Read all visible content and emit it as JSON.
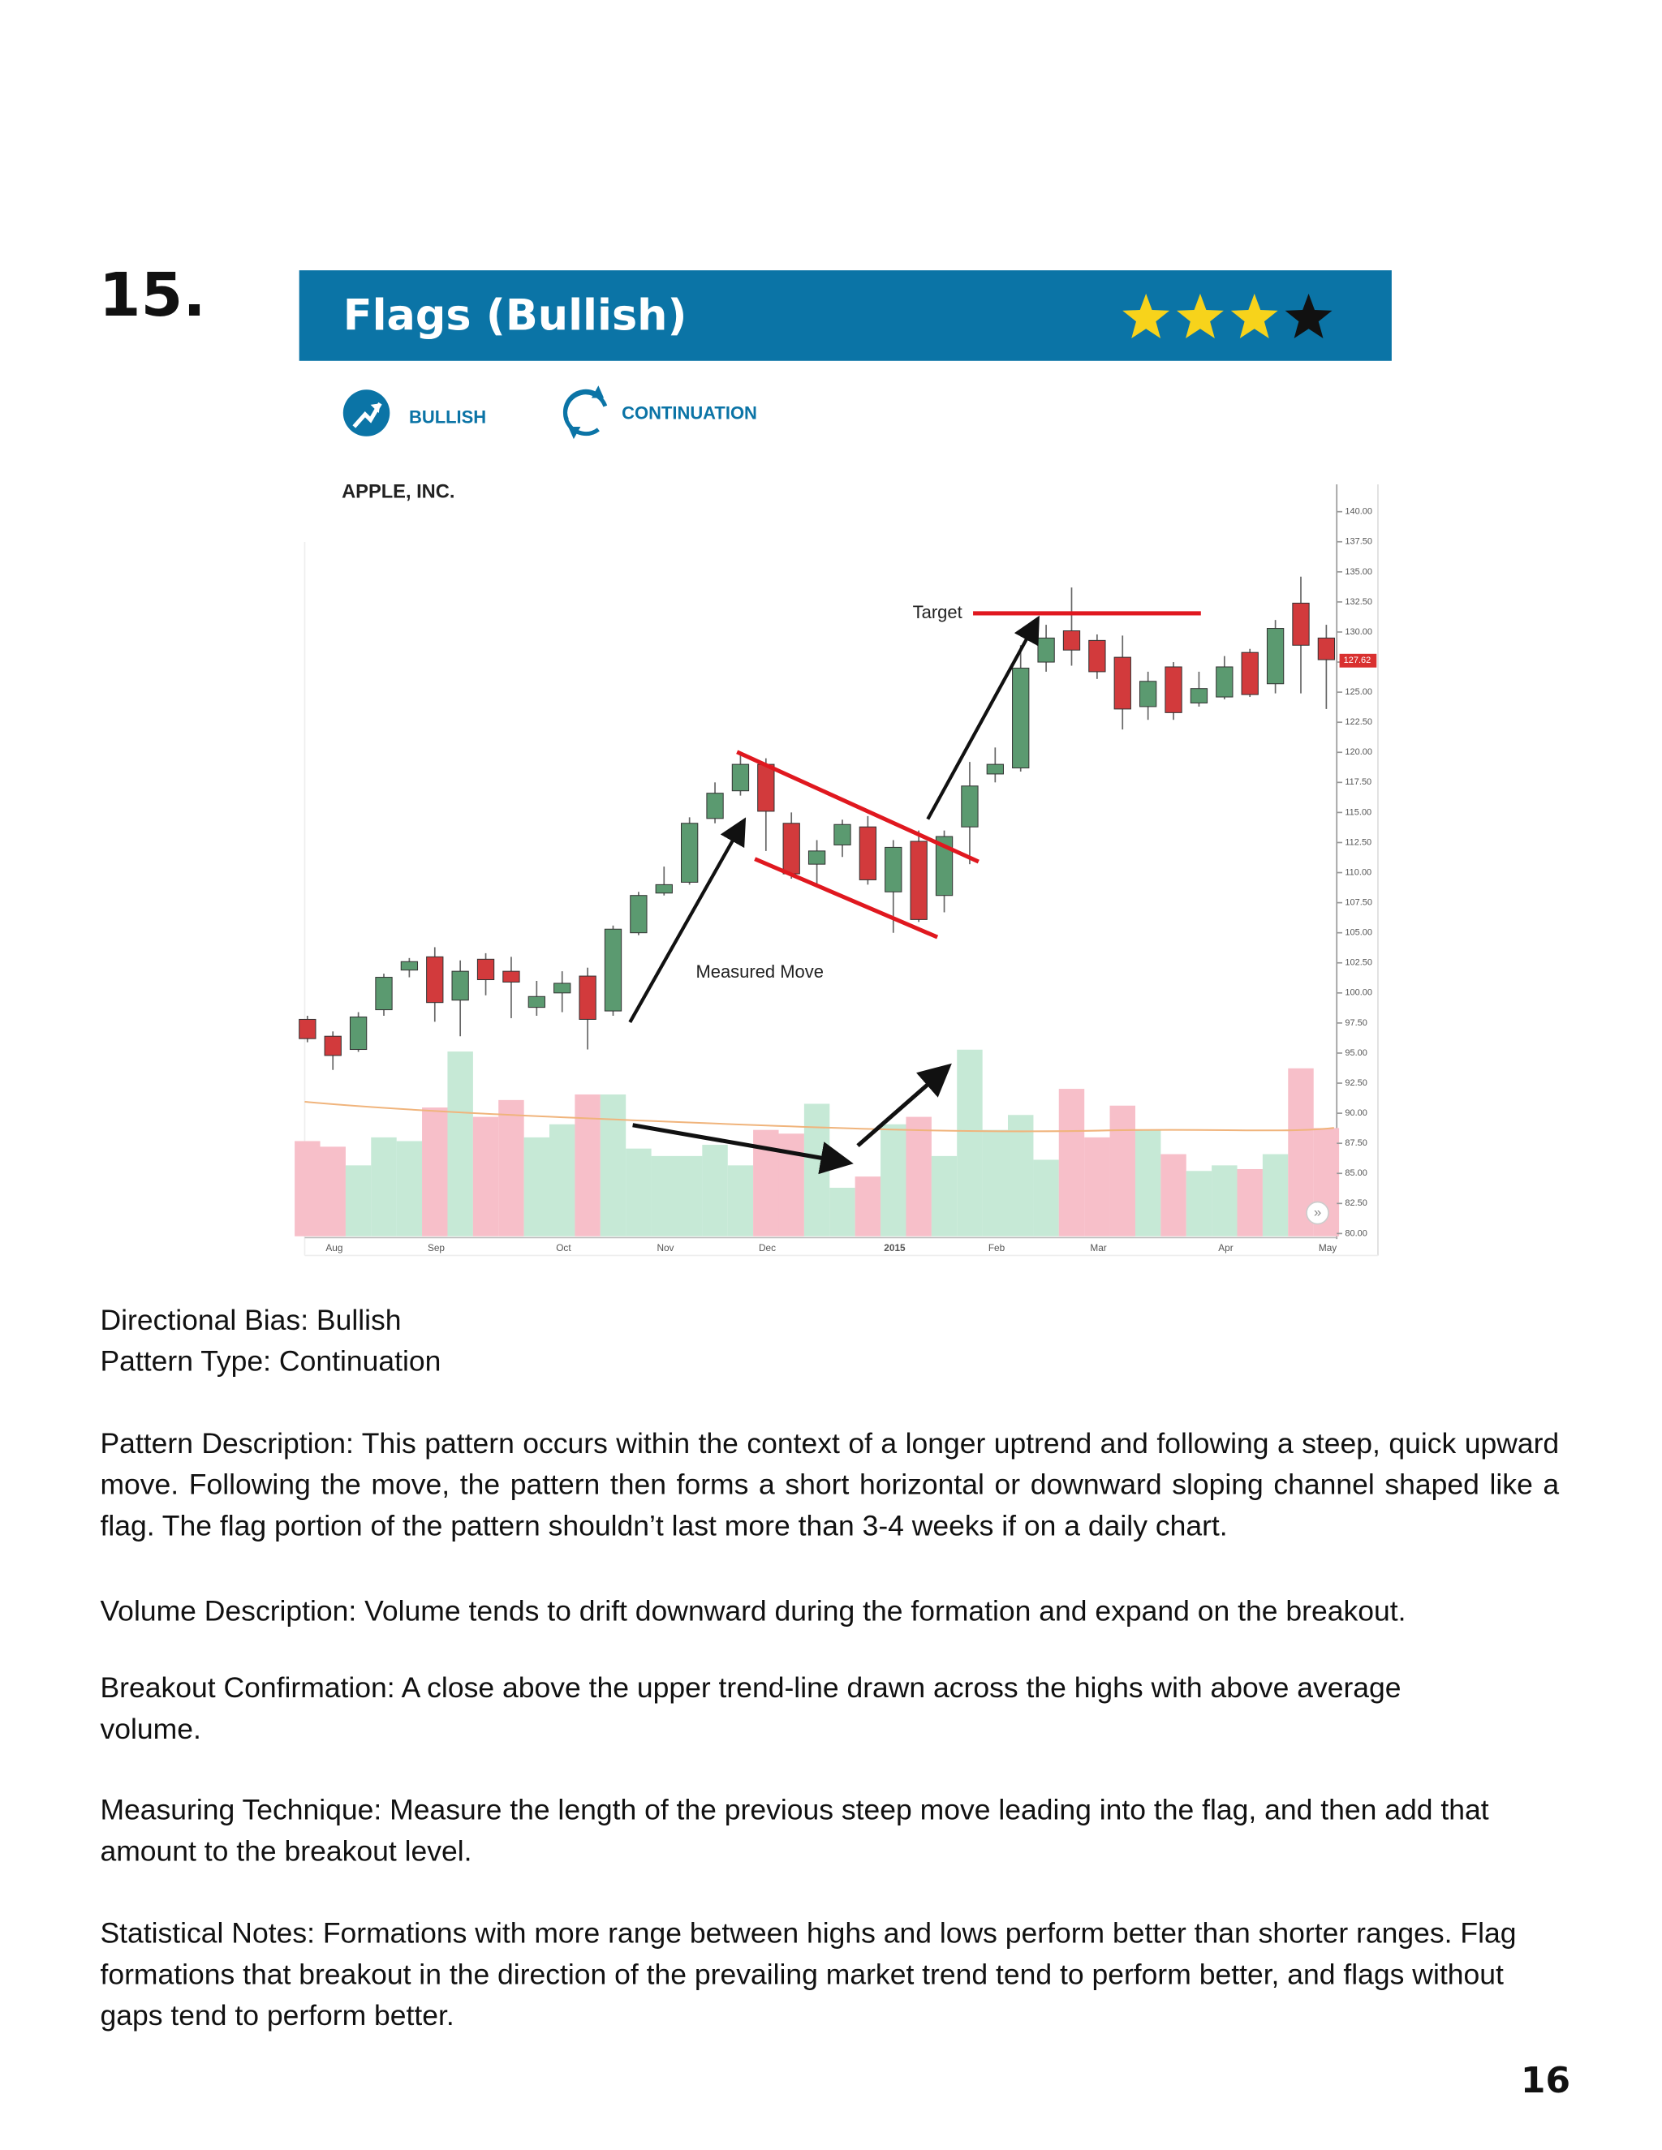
{
  "heading": {
    "number": "15."
  },
  "banner": {
    "title": "Flags (Bullish)",
    "rating": 3,
    "rating_max": 4
  },
  "tags": [
    "BULLISH",
    "CONTINUATION"
  ],
  "chart_data": {
    "type": "candlestick",
    "title": "APPLE, INC.",
    "categories": [
      null,
      "Aug",
      null,
      null,
      null,
      "Sep",
      null,
      null,
      null,
      null,
      "Oct",
      null,
      null,
      null,
      "Nov",
      null,
      null,
      null,
      "Dec",
      null,
      null,
      null,
      null,
      "2015",
      null,
      null,
      null,
      "Feb",
      null,
      null,
      null,
      "Mar",
      null,
      null,
      null,
      null,
      "Apr",
      null,
      null,
      null,
      "May"
    ],
    "open": [
      97.8,
      96.4,
      95.3,
      98.6,
      101.9,
      103.0,
      99.4,
      102.8,
      101.8,
      98.8,
      100.0,
      101.4,
      98.5,
      105.0,
      108.3,
      109.2,
      114.5,
      116.8,
      119.0,
      114.1,
      110.7,
      112.3,
      113.8,
      108.4,
      112.6,
      108.1,
      113.8,
      118.2,
      118.7,
      127.5,
      130.1,
      129.3,
      127.9,
      123.8,
      127.1,
      124.1,
      124.6,
      128.3,
      125.7,
      132.4,
      129.5
    ],
    "high": [
      98.1,
      96.8,
      98.4,
      101.6,
      102.9,
      103.8,
      102.7,
      103.3,
      103.0,
      101.0,
      101.8,
      102.1,
      105.6,
      108.4,
      110.5,
      114.6,
      117.5,
      119.8,
      119.5,
      115.0,
      112.7,
      114.4,
      114.7,
      112.7,
      113.5,
      113.5,
      119.2,
      120.4,
      128.9,
      130.6,
      133.7,
      129.8,
      129.7,
      126.7,
      127.5,
      126.7,
      128.0,
      128.6,
      131.0,
      134.6,
      130.6
    ],
    "low": [
      95.9,
      93.6,
      95.1,
      98.1,
      101.3,
      97.6,
      96.4,
      99.8,
      97.9,
      98.1,
      98.4,
      95.3,
      98.1,
      104.8,
      108.1,
      109.0,
      114.1,
      116.4,
      111.8,
      109.5,
      109.0,
      111.3,
      109.0,
      105.0,
      105.9,
      106.7,
      110.7,
      117.5,
      118.4,
      126.7,
      127.2,
      126.1,
      121.9,
      122.7,
      122.7,
      123.8,
      124.4,
      124.6,
      124.9,
      124.9,
      123.6
    ],
    "close": [
      96.2,
      94.8,
      98.0,
      101.3,
      102.6,
      99.2,
      101.8,
      101.1,
      100.9,
      99.7,
      100.8,
      97.8,
      105.3,
      108.1,
      109.0,
      114.1,
      116.6,
      119.0,
      115.1,
      109.9,
      111.8,
      114.0,
      109.4,
      112.1,
      106.1,
      113.0,
      117.2,
      119.0,
      127.0,
      129.5,
      128.5,
      126.7,
      123.6,
      125.9,
      123.3,
      125.3,
      127.1,
      124.8,
      130.3,
      128.9,
      127.7
    ],
    "volume": [
      51,
      48,
      38,
      53,
      51,
      69,
      99,
      64,
      73,
      53,
      60,
      76,
      76,
      47,
      43,
      43,
      49,
      38,
      57,
      55,
      71,
      26,
      32,
      60,
      64,
      43,
      100,
      57,
      65,
      41,
      79,
      53,
      70,
      57,
      44,
      35,
      38,
      36,
      44,
      90,
      58
    ],
    "up_color": "#5b9a70",
    "down_color": "#d23a3c",
    "up_volume_color": "#c6e9d6",
    "down_volume_color": "#f7bfc9",
    "ylim": [
      80,
      142
    ],
    "yticks": [
      {
        "value": 80,
        "label": "80.00"
      },
      {
        "value": 82.5,
        "label": "82.50"
      },
      {
        "value": 85,
        "label": "85.00"
      },
      {
        "value": 87.5,
        "label": "87.50"
      },
      {
        "value": 90,
        "label": "90.00"
      },
      {
        "value": 92.5,
        "label": "92.50"
      },
      {
        "value": 95,
        "label": "95.00"
      },
      {
        "value": 97.5,
        "label": "97.50"
      },
      {
        "value": 100,
        "label": "100.00"
      },
      {
        "value": 102.5,
        "label": "102.50"
      },
      {
        "value": 105,
        "label": "105.00"
      },
      {
        "value": 107.5,
        "label": "107.50"
      },
      {
        "value": 110,
        "label": "110.00"
      },
      {
        "value": 112.5,
        "label": "112.50"
      },
      {
        "value": 115,
        "label": "115.00"
      },
      {
        "value": 117.5,
        "label": "117.50"
      },
      {
        "value": 120,
        "label": "120.00"
      },
      {
        "value": 122.5,
        "label": "122.50"
      },
      {
        "value": 125,
        "label": "125.00"
      },
      {
        "value": 127.5,
        "label": "127.50"
      },
      {
        "value": 130,
        "label": "130.00"
      },
      {
        "value": 132.5,
        "label": "132.50"
      },
      {
        "value": 135,
        "label": "135.00"
      },
      {
        "value": 137.5,
        "label": "137.50"
      },
      {
        "value": 140,
        "label": "140.00"
      }
    ],
    "last_price": 127.62,
    "annotations": [
      "Target",
      "Measured Move"
    ]
  },
  "paragraphs": [
    "Directional Bias: Bullish",
    "Pattern Type: Continuation",
    "Pattern Description: This pattern occurs within the context of a longer uptrend and following a steep, quick upward move. Following the move, the pattern then forms a short horizontal or downward sloping channel shaped like a flag. The flag portion of the pattern shouldn’t last more than 3-4 weeks if on a daily chart.",
    "Volume Description: Volume tends to drift downward during the formation and expand on the breakout.",
    "Breakout Confirmation: A close above the upper trend-line drawn across the highs with above average volume.",
    "Measuring Technique: Measure the length of the previous steep move leading into the flag, and then add that amount to the breakout level.",
    "Statistical Notes: Formations with more range between highs and lows perform better than shorter ranges. Flag formations that breakout in the direction of the prevailing market trend tend to perform better, and flags without gaps tend to perform better."
  ],
  "page_number": 16
}
